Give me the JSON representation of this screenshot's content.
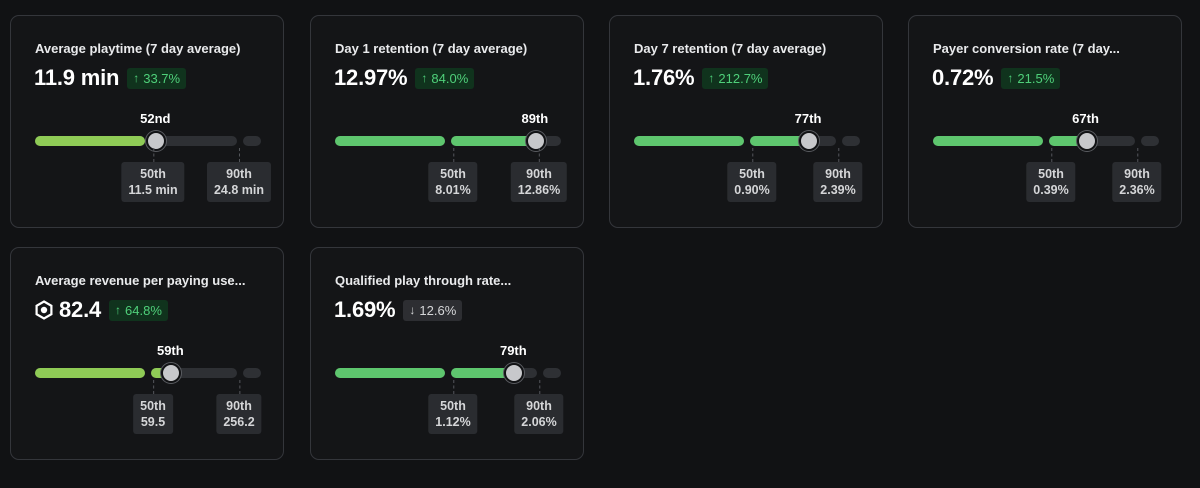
{
  "colors": {
    "bar_yellow_green": "#8fcb56",
    "bar_green": "#5ec66e",
    "delta_up_text": "#4fd07a",
    "delta_up_bg": "#10331d",
    "delta_down_bg": "#2d2e32"
  },
  "cards": [
    {
      "title": "Average playtime (7 day average)",
      "value": "11.9 min",
      "has_robux_icon": false,
      "delta": {
        "direction": "up",
        "text": "33.7%"
      },
      "percentile": 52,
      "percentile_label": "52nd",
      "bar_color": "yellow-green",
      "p50": {
        "label": "50th",
        "value": "11.5 min"
      },
      "p90": {
        "label": "90th",
        "value": "24.8 min"
      }
    },
    {
      "title": "Day 1 retention (7 day average)",
      "value": "12.97%",
      "has_robux_icon": false,
      "delta": {
        "direction": "up",
        "text": "84.0%"
      },
      "percentile": 89,
      "percentile_label": "89th",
      "bar_color": "green",
      "p50": {
        "label": "50th",
        "value": "8.01%"
      },
      "p90": {
        "label": "90th",
        "value": "12.86%"
      }
    },
    {
      "title": "Day 7 retention (7 day average)",
      "value": "1.76%",
      "has_robux_icon": false,
      "delta": {
        "direction": "up",
        "text": "212.7%"
      },
      "percentile": 77,
      "percentile_label": "77th",
      "bar_color": "green",
      "p50": {
        "label": "50th",
        "value": "0.90%"
      },
      "p90": {
        "label": "90th",
        "value": "2.39%"
      }
    },
    {
      "title": "Payer conversion rate (7 day...",
      "value": "0.72%",
      "has_robux_icon": false,
      "delta": {
        "direction": "up",
        "text": "21.5%"
      },
      "percentile": 67,
      "percentile_label": "67th",
      "bar_color": "green",
      "p50": {
        "label": "50th",
        "value": "0.39%"
      },
      "p90": {
        "label": "90th",
        "value": "2.36%"
      }
    },
    {
      "title": "Average revenue per paying use...",
      "value": "82.4",
      "has_robux_icon": true,
      "delta": {
        "direction": "up",
        "text": "64.8%"
      },
      "percentile": 59,
      "percentile_label": "59th",
      "bar_color": "yellow-green",
      "p50": {
        "label": "50th",
        "value": "59.5"
      },
      "p90": {
        "label": "90th",
        "value": "256.2"
      }
    },
    {
      "title": "Qualified play through rate...",
      "value": "1.69%",
      "has_robux_icon": false,
      "delta": {
        "direction": "down",
        "text": "12.6%"
      },
      "percentile": 79,
      "percentile_label": "79th",
      "bar_color": "green",
      "p50": {
        "label": "50th",
        "value": "1.12%"
      },
      "p90": {
        "label": "90th",
        "value": "2.06%"
      }
    }
  ]
}
